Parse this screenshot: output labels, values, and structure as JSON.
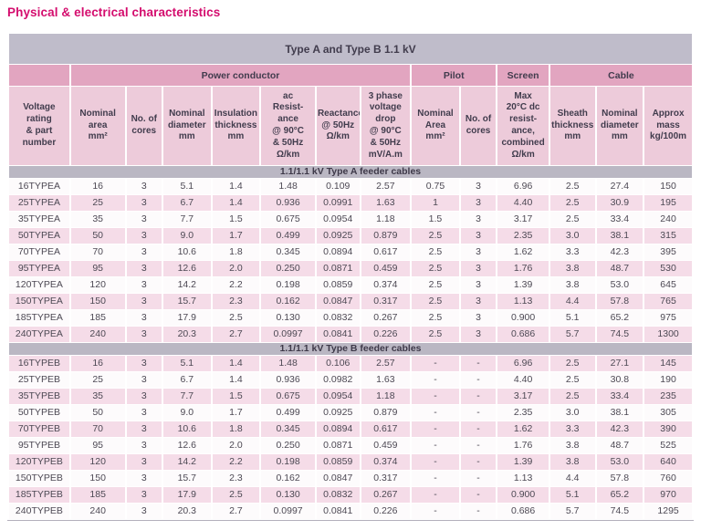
{
  "page_title": "Physical & electrical characteristics",
  "table": {
    "title": "Type A and Type B  1.1 kV",
    "groups": [
      {
        "label": "",
        "span": 1
      },
      {
        "label": "Power conductor",
        "span": 7
      },
      {
        "label": "Pilot",
        "span": 2
      },
      {
        "label": "Screen",
        "span": 1
      },
      {
        "label": "Cable",
        "span": 3
      }
    ],
    "columns": [
      "Voltage\nrating\n& part\nnumber",
      "Nominal\narea\nmm²",
      "No. of\ncores",
      "Nominal\ndiameter\nmm",
      "Insulation\nthickness\nmm",
      "ac\nResist-\nance\n@ 90°C\n& 50Hz\nΩ/km",
      "Reactance\n@ 50Hz\nΩ/km",
      "3 phase\nvoltage\ndrop\n@ 90°C\n& 50Hz\nmV/A.m",
      "Nominal\nArea\nmm²",
      "No. of\ncores",
      "Max\n20°C dc\nresist-\nance,\ncombined\nΩ/km",
      "Sheath\nthickness\nmm",
      "Nominal\ndiameter\nmm",
      "Approx\nmass\nkg/100m"
    ],
    "sections": [
      {
        "label": "1.1/1.1 kV Type A feeder cables",
        "rows": [
          [
            "16TYPEA",
            "16",
            "3",
            "5.1",
            "1.4",
            "1.48",
            "0.109",
            "2.57",
            "0.75",
            "3",
            "6.96",
            "2.5",
            "27.4",
            "150"
          ],
          [
            "25TYPEA",
            "25",
            "3",
            "6.7",
            "1.4",
            "0.936",
            "0.0991",
            "1.63",
            "1",
            "3",
            "4.40",
            "2.5",
            "30.9",
            "195"
          ],
          [
            "35TYPEA",
            "35",
            "3",
            "7.7",
            "1.5",
            "0.675",
            "0.0954",
            "1.18",
            "1.5",
            "3",
            "3.17",
            "2.5",
            "33.4",
            "240"
          ],
          [
            "50TYPEA",
            "50",
            "3",
            "9.0",
            "1.7",
            "0.499",
            "0.0925",
            "0.879",
            "2.5",
            "3",
            "2.35",
            "3.0",
            "38.1",
            "315"
          ],
          [
            "70TYPEA",
            "70",
            "3",
            "10.6",
            "1.8",
            "0.345",
            "0.0894",
            "0.617",
            "2.5",
            "3",
            "1.62",
            "3.3",
            "42.3",
            "395"
          ],
          [
            "95TYPEA",
            "95",
            "3",
            "12.6",
            "2.0",
            "0.250",
            "0.0871",
            "0.459",
            "2.5",
            "3",
            "1.76",
            "3.8",
            "48.7",
            "530"
          ],
          [
            "120TYPEA",
            "120",
            "3",
            "14.2",
            "2.2",
            "0.198",
            "0.0859",
            "0.374",
            "2.5",
            "3",
            "1.39",
            "3.8",
            "53.0",
            "645"
          ],
          [
            "150TYPEA",
            "150",
            "3",
            "15.7",
            "2.3",
            "0.162",
            "0.0847",
            "0.317",
            "2.5",
            "3",
            "1.13",
            "4.4",
            "57.8",
            "765"
          ],
          [
            "185TYPEA",
            "185",
            "3",
            "17.9",
            "2.5",
            "0.130",
            "0.0832",
            "0.267",
            "2.5",
            "3",
            "0.900",
            "5.1",
            "65.2",
            "975"
          ],
          [
            "240TYPEA",
            "240",
            "3",
            "20.3",
            "2.7",
            "0.0997",
            "0.0841",
            "0.226",
            "2.5",
            "3",
            "0.686",
            "5.7",
            "74.5",
            "1300"
          ]
        ]
      },
      {
        "label": "1.1/1.1 kV Type B feeder cables",
        "rows": [
          [
            "16TYPEB",
            "16",
            "3",
            "5.1",
            "1.4",
            "1.48",
            "0.106",
            "2.57",
            "-",
            "-",
            "6.96",
            "2.5",
            "27.1",
            "145"
          ],
          [
            "25TYPEB",
            "25",
            "3",
            "6.7",
            "1.4",
            "0.936",
            "0.0982",
            "1.63",
            "-",
            "-",
            "4.40",
            "2.5",
            "30.8",
            "190"
          ],
          [
            "35TYPEB",
            "35",
            "3",
            "7.7",
            "1.5",
            "0.675",
            "0.0954",
            "1.18",
            "-",
            "-",
            "3.17",
            "2.5",
            "33.4",
            "235"
          ],
          [
            "50TYPEB",
            "50",
            "3",
            "9.0",
            "1.7",
            "0.499",
            "0.0925",
            "0.879",
            "-",
            "-",
            "2.35",
            "3.0",
            "38.1",
            "305"
          ],
          [
            "70TYPEB",
            "70",
            "3",
            "10.6",
            "1.8",
            "0.345",
            "0.0894",
            "0.617",
            "-",
            "-",
            "1.62",
            "3.3",
            "42.3",
            "390"
          ],
          [
            "95TYPEB",
            "95",
            "3",
            "12.6",
            "2.0",
            "0.250",
            "0.0871",
            "0.459",
            "-",
            "-",
            "1.76",
            "3.8",
            "48.7",
            "525"
          ],
          [
            "120TYPEB",
            "120",
            "3",
            "14.2",
            "2.2",
            "0.198",
            "0.0859",
            "0.374",
            "-",
            "-",
            "1.39",
            "3.8",
            "53.0",
            "640"
          ],
          [
            "150TYPEB",
            "150",
            "3",
            "15.7",
            "2.3",
            "0.162",
            "0.0847",
            "0.317",
            "-",
            "-",
            "1.13",
            "4.4",
            "57.8",
            "760"
          ],
          [
            "185TYPEB",
            "185",
            "3",
            "17.9",
            "2.5",
            "0.130",
            "0.0832",
            "0.267",
            "-",
            "-",
            "0.900",
            "5.1",
            "65.2",
            "970"
          ],
          [
            "240TYPEB",
            "240",
            "3",
            "20.3",
            "2.7",
            "0.0997",
            "0.0841",
            "0.226",
            "-",
            "-",
            "0.686",
            "5.7",
            "74.5",
            "1295"
          ]
        ]
      }
    ]
  },
  "colors": {
    "title_magenta": "#d40d6e",
    "band_gray": "#bfbcca",
    "group_pink": "#e2a5c0",
    "header_pink": "#edcbda",
    "row_pink": "#f5dce8",
    "row_white": "#fdfbfc",
    "section_gray": "#bab7c3",
    "text_dark": "#413c4d"
  }
}
